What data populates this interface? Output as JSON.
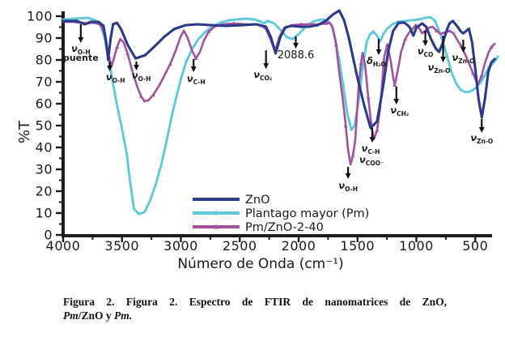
{
  "figure": {
    "caption_line1": "Figura 2. Figura 2. Espectro de FTIR de nanomatrices de ZnO,",
    "caption_line2_parts": [
      {
        "t": "Pm",
        "italic": true
      },
      {
        "t": "/ZnO y ",
        "italic": false
      },
      {
        "t": "Pm.",
        "italic": true
      }
    ]
  },
  "chart_data": {
    "type": "line",
    "title": "",
    "xlabel": "Número de Onda (cm⁻¹)",
    "ylabel": "%T",
    "xlim": [
      4000,
      300
    ],
    "ylim": [
      0,
      105
    ],
    "x_axis_reversed": true,
    "grid": false,
    "legend_position": "lower center-right inside plot",
    "x_ticks": [
      4000,
      3500,
      3000,
      2500,
      2000,
      1500,
      1000,
      500
    ],
    "x_minor_step": 250,
    "y_ticks": [
      0,
      10,
      20,
      30,
      40,
      50,
      60,
      70,
      80,
      90,
      100
    ],
    "y_minor_step": 5,
    "axis_color": "#1c1c1c",
    "series": [
      {
        "name": "ZnO",
        "color": "#2b3a8c",
        "marker": "square",
        "points": [
          [
            4000,
            97.8
          ],
          [
            3884,
            97.8
          ],
          [
            3815,
            96.3
          ],
          [
            3768,
            97.4
          ],
          [
            3699,
            97.4
          ],
          [
            3658,
            95.6
          ],
          [
            3638,
            89.6
          ],
          [
            3617,
            80.0
          ],
          [
            3597,
            89.6
          ],
          [
            3576,
            96.3
          ],
          [
            3542,
            97.0
          ],
          [
            3508,
            94.1
          ],
          [
            3453,
            87.0
          ],
          [
            3385,
            80.7
          ],
          [
            3303,
            82.2
          ],
          [
            3221,
            86.3
          ],
          [
            3139,
            90.7
          ],
          [
            3057,
            94.1
          ],
          [
            2961,
            95.9
          ],
          [
            2858,
            96.3
          ],
          [
            2742,
            95.9
          ],
          [
            2619,
            95.6
          ],
          [
            2482,
            95.9
          ],
          [
            2359,
            96.3
          ],
          [
            2277,
            95.2
          ],
          [
            2236,
            90.4
          ],
          [
            2195,
            83.0
          ],
          [
            2154,
            90.7
          ],
          [
            2113,
            94.8
          ],
          [
            2058,
            95.6
          ],
          [
            1990,
            95.2
          ],
          [
            1915,
            95.2
          ],
          [
            1840,
            95.9
          ],
          [
            1771,
            97.8
          ],
          [
            1710,
            100.7
          ],
          [
            1655,
            102.6
          ],
          [
            1614,
            98.1
          ],
          [
            1573,
            90.0
          ],
          [
            1505,
            72.9
          ],
          [
            1443,
            59.3
          ],
          [
            1389,
            48.9
          ],
          [
            1334,
            51.9
          ],
          [
            1286,
            66.7
          ],
          [
            1238,
            84.4
          ],
          [
            1197,
            93.3
          ],
          [
            1150,
            97.0
          ],
          [
            1102,
            97.0
          ],
          [
            1060,
            95.2
          ],
          [
            1026,
            91.1
          ],
          [
            999,
            94.8
          ],
          [
            951,
            96.7
          ],
          [
            917,
            95.2
          ],
          [
            876,
            89.6
          ],
          [
            835,
            85.2
          ],
          [
            807,
            83.7
          ],
          [
            773,
            88.1
          ],
          [
            739,
            94.1
          ],
          [
            718,
            96.7
          ],
          [
            691,
            97.8
          ],
          [
            650,
            95.2
          ],
          [
            623,
            93.0
          ],
          [
            602,
            92.2
          ],
          [
            575,
            93.3
          ],
          [
            554,
            94.3
          ],
          [
            527,
            88.1
          ],
          [
            500,
            75.9
          ],
          [
            472,
            62.2
          ],
          [
            445,
            53.7
          ],
          [
            418,
            62.2
          ],
          [
            390,
            74.4
          ],
          [
            363,
            78.9
          ],
          [
            335,
            80.4
          ]
        ]
      },
      {
        "name": "Plantago mayor (Pm)",
        "color": "#5ec9db",
        "marker": "circle",
        "points": [
          [
            4000,
            98.5
          ],
          [
            3884,
            98.9
          ],
          [
            3795,
            99.3
          ],
          [
            3727,
            98.1
          ],
          [
            3686,
            96.3
          ],
          [
            3651,
            90.7
          ],
          [
            3617,
            81.5
          ],
          [
            3583,
            71.1
          ],
          [
            3542,
            59.3
          ],
          [
            3501,
            48.9
          ],
          [
            3460,
            37.0
          ],
          [
            3426,
            22.2
          ],
          [
            3398,
            11.9
          ],
          [
            3357,
            9.6
          ],
          [
            3309,
            10.4
          ],
          [
            3262,
            15.6
          ],
          [
            3214,
            23.0
          ],
          [
            3166,
            32.2
          ],
          [
            3118,
            43.7
          ],
          [
            3077,
            54.4
          ],
          [
            3036,
            63.7
          ],
          [
            2995,
            72.2
          ],
          [
            2954,
            79.3
          ],
          [
            2906,
            84.8
          ],
          [
            2851,
            89.6
          ],
          [
            2797,
            92.6
          ],
          [
            2735,
            95.2
          ],
          [
            2667,
            97.0
          ],
          [
            2592,
            98.1
          ],
          [
            2517,
            98.5
          ],
          [
            2448,
            98.9
          ],
          [
            2380,
            98.5
          ],
          [
            2332,
            97.8
          ],
          [
            2298,
            96.7
          ],
          [
            2264,
            97.8
          ],
          [
            2209,
            96.7
          ],
          [
            2154,
            93.7
          ],
          [
            2100,
            90.4
          ],
          [
            2052,
            89.6
          ],
          [
            1997,
            91.9
          ],
          [
            1935,
            95.6
          ],
          [
            1867,
            97.8
          ],
          [
            1806,
            98.5
          ],
          [
            1758,
            98.1
          ],
          [
            1723,
            96.3
          ],
          [
            1689,
            89.6
          ],
          [
            1655,
            79.6
          ],
          [
            1621,
            68.5
          ],
          [
            1587,
            55.6
          ],
          [
            1552,
            48.1
          ],
          [
            1525,
            50.0
          ],
          [
            1491,
            61.1
          ],
          [
            1457,
            75.9
          ],
          [
            1423,
            88.1
          ],
          [
            1396,
            91.5
          ],
          [
            1368,
            93.0
          ],
          [
            1334,
            91.1
          ],
          [
            1307,
            88.5
          ],
          [
            1280,
            91.9
          ],
          [
            1246,
            94.4
          ],
          [
            1205,
            96.3
          ],
          [
            1157,
            97.4
          ],
          [
            1102,
            97.8
          ],
          [
            1040,
            98.1
          ],
          [
            979,
            98.5
          ],
          [
            924,
            99.3
          ],
          [
            883,
            99.6
          ],
          [
            841,
            97.8
          ],
          [
            807,
            93.3
          ],
          [
            773,
            88.1
          ],
          [
            739,
            81.5
          ],
          [
            704,
            74.8
          ],
          [
            663,
            69.3
          ],
          [
            623,
            66.3
          ],
          [
            582,
            65.2
          ],
          [
            541,
            65.6
          ],
          [
            500,
            67.0
          ],
          [
            459,
            69.3
          ],
          [
            418,
            73.0
          ],
          [
            390,
            76.3
          ],
          [
            335,
            79.3
          ],
          [
            308,
            81.5
          ]
        ]
      },
      {
        "name": "Pm/ZnO-2-40",
        "color": "#a2519e",
        "marker": "triangle",
        "points": [
          [
            4000,
            97.4
          ],
          [
            3884,
            97.4
          ],
          [
            3802,
            96.7
          ],
          [
            3747,
            97.0
          ],
          [
            3699,
            96.7
          ],
          [
            3665,
            94.8
          ],
          [
            3638,
            88.9
          ],
          [
            3610,
            81.5
          ],
          [
            3590,
            77.0
          ],
          [
            3569,
            80.7
          ],
          [
            3542,
            85.9
          ],
          [
            3515,
            89.6
          ],
          [
            3487,
            88.1
          ],
          [
            3453,
            83.0
          ],
          [
            3412,
            74.8
          ],
          [
            3371,
            67.8
          ],
          [
            3337,
            63.3
          ],
          [
            3309,
            61.1
          ],
          [
            3275,
            61.5
          ],
          [
            3234,
            64.1
          ],
          [
            3186,
            68.1
          ],
          [
            3139,
            73.0
          ],
          [
            3091,
            78.1
          ],
          [
            3043,
            84.4
          ],
          [
            3002,
            90.7
          ],
          [
            2975,
            93.3
          ],
          [
            2947,
            90.7
          ],
          [
            2906,
            84.4
          ],
          [
            2872,
            80.7
          ],
          [
            2838,
            83.7
          ],
          [
            2804,
            88.9
          ],
          [
            2763,
            93.0
          ],
          [
            2715,
            95.2
          ],
          [
            2646,
            96.3
          ],
          [
            2551,
            96.7
          ],
          [
            2448,
            96.3
          ],
          [
            2359,
            96.3
          ],
          [
            2284,
            94.8
          ],
          [
            2243,
            90.0
          ],
          [
            2202,
            84.1
          ],
          [
            2161,
            90.7
          ],
          [
            2120,
            94.8
          ],
          [
            2058,
            95.9
          ],
          [
            1977,
            96.3
          ],
          [
            1895,
            96.3
          ],
          [
            1820,
            96.3
          ],
          [
            1771,
            96.7
          ],
          [
            1737,
            97.0
          ],
          [
            1710,
            94.8
          ],
          [
            1682,
            87.0
          ],
          [
            1655,
            74.1
          ],
          [
            1627,
            63.0
          ],
          [
            1600,
            50.0
          ],
          [
            1580,
            38.9
          ],
          [
            1559,
            32.2
          ],
          [
            1539,
            36.3
          ],
          [
            1518,
            43.7
          ],
          [
            1491,
            67.8
          ],
          [
            1470,
            78.5
          ],
          [
            1457,
            83.3
          ],
          [
            1436,
            77.8
          ],
          [
            1409,
            63.0
          ],
          [
            1382,
            50.0
          ],
          [
            1361,
            43.7
          ],
          [
            1334,
            47.8
          ],
          [
            1307,
            58.1
          ],
          [
            1273,
            81.5
          ],
          [
            1246,
            87.0
          ],
          [
            1218,
            79.6
          ],
          [
            1198,
            72.2
          ],
          [
            1184,
            68.5
          ],
          [
            1157,
            75.6
          ],
          [
            1129,
            83.7
          ],
          [
            1095,
            89.6
          ],
          [
            1061,
            92.6
          ],
          [
            1033,
            94.1
          ],
          [
            1006,
            95.9
          ],
          [
            979,
            94.8
          ],
          [
            951,
            92.2
          ],
          [
            924,
            93.3
          ],
          [
            889,
            94.8
          ],
          [
            862,
            95.2
          ],
          [
            828,
            93.3
          ],
          [
            794,
            91.9
          ],
          [
            760,
            92.6
          ],
          [
            718,
            93.3
          ],
          [
            684,
            92.2
          ],
          [
            650,
            88.9
          ],
          [
            623,
            86.7
          ],
          [
            589,
            83.0
          ],
          [
            554,
            78.5
          ],
          [
            520,
            74.1
          ],
          [
            493,
            70.4
          ],
          [
            472,
            69.3
          ],
          [
            445,
            73.0
          ],
          [
            418,
            78.5
          ],
          [
            390,
            83.0
          ],
          [
            363,
            85.9
          ],
          [
            335,
            87.4
          ]
        ]
      }
    ],
    "annotations": [
      {
        "glyph": "ν",
        "sub": "O-H",
        "line2": "puente",
        "wn": 3850,
        "arrow": [
          96.3,
          87.8
        ],
        "label_T": 87.0,
        "dx": 0
      },
      {
        "glyph": "ν",
        "sub": "O-H",
        "wn": 3604,
        "arrow": [
          79.3,
          74.8
        ],
        "label_T": 74.1,
        "dx": 7
      },
      {
        "glyph": "ν",
        "sub": "O-H",
        "wn": 3378,
        "arrow": [
          79.3,
          75.2
        ],
        "label_T": 74.8,
        "dx": 6
      },
      {
        "glyph": "ν",
        "sub": "C-H",
        "wn": 2892,
        "arrow": [
          80.4,
          74.4
        ],
        "label_T": 73.3,
        "dx": 3
      },
      {
        "glyph": "ν",
        "sub": "CO₂",
        "wn": 2277,
        "arrow": [
          84.4,
          75.9
        ],
        "label_T": 75.2,
        "dx": -4
      },
      {
        "text": "2088.6",
        "wn": 2024,
        "arrow": [
          90.7,
          85.2
        ],
        "label_T": 84.4,
        "dx": 0
      },
      {
        "glyph": "ν",
        "sub": "O-H",
        "wn": 1580,
        "arrow": [
          31.1,
          25.6
        ],
        "label_T": 24.4,
        "dx": 0
      },
      {
        "glyph": "δ",
        "sub": "H₂O",
        "wn": 1320,
        "arrow": [
          89.6,
          82.2
        ],
        "label_T": 81.5,
        "dx": -3
      },
      {
        "glyph": "ν",
        "sub": "C-H",
        "wn": 1375,
        "arrow": [
          48.9,
          42.2
        ],
        "label_T": 41.5,
        "dx": -2
      },
      {
        "glyph": "ν",
        "sub": "COO⁻",
        "wn": 1382,
        "label_T": 36.3,
        "dx": 0
      },
      {
        "glyph": "ν",
        "sub": "CH₂",
        "wn": 1170,
        "arrow": [
          67.8,
          59.6
        ],
        "label_T": 58.9,
        "dx": 4
      },
      {
        "glyph": "ν",
        "sub": "CO",
        "wn": 924,
        "arrow": [
          93.3,
          86.3
        ],
        "label_T": 85.9,
        "dx": 0
      },
      {
        "glyph": "ν",
        "sub": "Zn-O",
        "wn": 773,
        "arrow": [
          91.1,
          78.9
        ],
        "label_T": 78.5,
        "dx": -5
      },
      {
        "glyph": "ν",
        "sub": "Zn-O",
        "wn": 602,
        "arrow": [
          89.3,
          83.3
        ],
        "label_T": 83.0,
        "dx": 0
      },
      {
        "glyph": "ν",
        "sub": "Zn-O",
        "wn": 445,
        "arrow": [
          53.0,
          46.7
        ],
        "label_T": 46.3,
        "dx": 0
      }
    ]
  }
}
